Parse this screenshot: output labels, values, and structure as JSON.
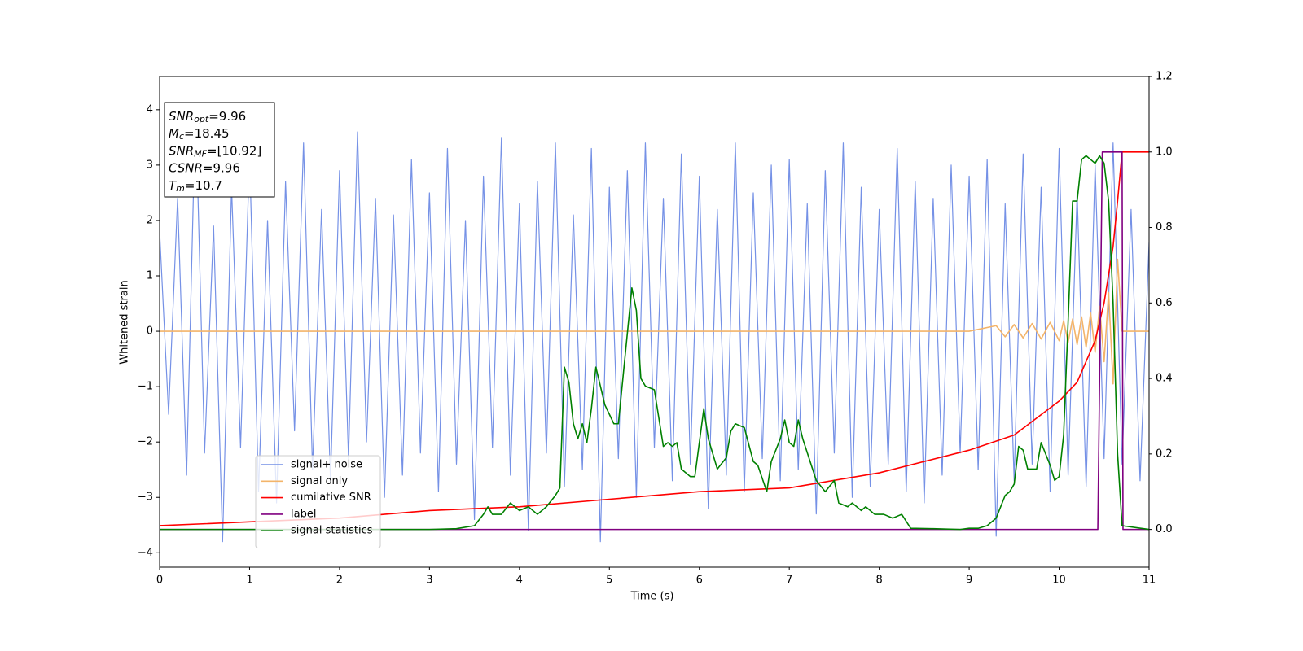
{
  "chart_data": {
    "type": "line",
    "xlabel": "Time (s)",
    "ylabel": "Whitened strain",
    "xlim": [
      0,
      11
    ],
    "ylim": [
      -4.26,
      4.6
    ],
    "y2lim": [
      -0.1,
      1.2
    ],
    "xticks": [
      0,
      1,
      2,
      3,
      4,
      5,
      6,
      7,
      8,
      9,
      10,
      11
    ],
    "yticks": [
      {
        "value": -4,
        "label": "−4"
      },
      {
        "value": -3,
        "label": "−3"
      },
      {
        "value": -2,
        "label": "−2"
      },
      {
        "value": -1,
        "label": "−1"
      },
      0,
      1,
      2,
      3,
      4
    ],
    "y2ticks": [
      {
        "value": 0,
        "label": "0.0"
      },
      {
        "value": 0.2,
        "label": "0.2"
      },
      {
        "value": 0.4,
        "label": "0.4"
      },
      {
        "value": 0.6,
        "label": "0.6"
      },
      {
        "value": 0.8,
        "label": "0.8"
      },
      {
        "value": 1,
        "label": "1.0"
      },
      {
        "value": 1.2,
        "label": "1.2"
      }
    ],
    "legend": "lower left",
    "annotations": [
      {
        "name": "SNR",
        "sub": "opt",
        "text": "=9.96"
      },
      {
        "name": "M",
        "sub": "c",
        "text": "=18.45"
      },
      {
        "name": "SNR",
        "sub": "MF",
        "text": "=[10.92]"
      },
      {
        "name": "CSNR",
        "text": "=9.96"
      },
      {
        "name": "T",
        "sub": "m",
        "text": "=10.7"
      }
    ],
    "series": [
      {
        "name": "signal+ noise",
        "color": "#7591e6",
        "x": [
          0,
          0.1,
          0.2,
          0.3,
          0.4,
          0.5,
          0.6,
          0.7,
          0.8,
          0.9,
          1,
          1.1,
          1.2,
          1.3,
          1.4,
          1.5,
          1.6,
          1.7,
          1.8,
          1.9,
          2,
          2.1,
          2.2,
          2.3,
          2.4,
          2.5,
          2.6,
          2.7,
          2.8,
          2.9,
          3,
          3.1,
          3.2,
          3.3,
          3.4,
          3.5,
          3.6,
          3.7,
          3.8,
          3.9,
          4,
          4.1,
          4.2,
          4.3,
          4.4,
          4.5,
          4.6,
          4.7,
          4.8,
          4.9,
          5,
          5.1,
          5.2,
          5.3,
          5.4,
          5.5,
          5.6,
          5.7,
          5.8,
          5.9,
          6,
          6.1,
          6.2,
          6.3,
          6.4,
          6.5,
          6.6,
          6.7,
          6.8,
          6.9,
          7,
          7.1,
          7.2,
          7.3,
          7.4,
          7.5,
          7.6,
          7.7,
          7.8,
          7.9,
          8,
          8.1,
          8.2,
          8.3,
          8.4,
          8.5,
          8.6,
          8.7,
          8.8,
          8.9,
          9,
          9.1,
          9.2,
          9.3,
          9.4,
          9.5,
          9.6,
          9.7,
          9.8,
          9.9,
          10,
          10.1,
          10.2,
          10.3,
          10.4,
          10.5,
          10.6,
          10.7,
          10.8,
          10.9,
          11
        ],
        "values": [
          1.8,
          -1.5,
          2.4,
          -2.6,
          4.1,
          -2.2,
          1.9,
          -3.8,
          2.6,
          -2.1,
          3.2,
          -2.9,
          2.0,
          -3.1,
          2.7,
          -1.8,
          3.4,
          -2.5,
          2.2,
          -2.7,
          2.9,
          -2.3,
          3.6,
          -2.0,
          2.4,
          -3.0,
          2.1,
          -2.6,
          3.1,
          -2.2,
          2.5,
          -2.9,
          3.3,
          -2.4,
          2.0,
          -3.4,
          2.8,
          -2.1,
          3.5,
          -2.6,
          2.3,
          -3.6,
          2.7,
          -2.2,
          3.4,
          -2.8,
          2.1,
          -2.5,
          3.3,
          -3.8,
          2.6,
          -2.3,
          2.9,
          -3.0,
          3.4,
          -2.1,
          2.4,
          -2.7,
          3.2,
          -2.4,
          2.8,
          -3.2,
          2.2,
          -2.6,
          3.4,
          -2.9,
          2.5,
          -2.3,
          3.0,
          -2.7,
          3.1,
          -2.5,
          2.3,
          -3.3,
          2.9,
          -2.2,
          3.4,
          -3.0,
          2.6,
          -2.8,
          2.2,
          -2.4,
          3.3,
          -2.9,
          2.7,
          -3.1,
          2.4,
          -2.6,
          3.0,
          -2.2,
          2.8,
          -2.5,
          3.1,
          -3.7,
          2.3,
          -2.7,
          3.2,
          -2.4,
          2.6,
          -2.9,
          3.3,
          -2.6,
          2.5,
          -2.8,
          3.0,
          -2.3,
          3.4,
          -2.4,
          2.2,
          -2.7,
          1.6
        ]
      },
      {
        "name": "signal only",
        "color": "#f3b46a",
        "x": [
          0,
          2,
          4,
          6,
          8,
          9,
          9.3,
          9.4,
          9.5,
          9.6,
          9.7,
          9.8,
          9.9,
          10,
          10.05,
          10.1,
          10.15,
          10.2,
          10.25,
          10.3,
          10.35,
          10.4,
          10.45,
          10.5,
          10.55,
          10.6,
          10.65,
          10.7,
          10.8,
          11
        ],
        "values": [
          0,
          0,
          0,
          0,
          0,
          0,
          0.1,
          -0.1,
          0.12,
          -0.12,
          0.14,
          -0.14,
          0.16,
          -0.17,
          0.19,
          -0.2,
          0.22,
          -0.24,
          0.26,
          -0.29,
          0.33,
          -0.38,
          0.45,
          -0.55,
          0.7,
          -0.95,
          1.3,
          0,
          0,
          0
        ]
      },
      {
        "name": "cumilative SNR",
        "color": "#ff0000",
        "axis": "y2",
        "x": [
          0,
          1,
          2,
          3,
          4,
          5,
          6,
          7,
          8,
          9,
          9.5,
          10,
          10.2,
          10.4,
          10.5,
          10.6,
          10.65,
          10.7,
          11
        ],
        "values": [
          0.01,
          0.02,
          0.03,
          0.05,
          0.06,
          0.08,
          0.1,
          0.11,
          0.15,
          0.21,
          0.25,
          0.34,
          0.39,
          0.5,
          0.6,
          0.75,
          0.87,
          1.0,
          1.0
        ]
      },
      {
        "name": "label",
        "color": "#800080",
        "axis": "y2",
        "x": [
          0,
          10.43,
          10.48,
          10.7,
          10.71,
          11
        ],
        "values": [
          0,
          0,
          1,
          1,
          0,
          0
        ]
      },
      {
        "name": "signal statistics",
        "color": "#008000",
        "axis": "y2",
        "x": [
          0,
          1,
          2,
          3,
          3.3,
          3.5,
          3.6,
          3.65,
          3.7,
          3.8,
          3.9,
          4.0,
          4.1,
          4.2,
          4.3,
          4.4,
          4.45,
          4.5,
          4.55,
          4.6,
          4.65,
          4.7,
          4.75,
          4.8,
          4.85,
          4.95,
          5.05,
          5.1,
          5.2,
          5.25,
          5.3,
          5.35,
          5.4,
          5.5,
          5.6,
          5.65,
          5.7,
          5.75,
          5.8,
          5.9,
          5.95,
          6.05,
          6.1,
          6.2,
          6.3,
          6.35,
          6.4,
          6.5,
          6.6,
          6.65,
          6.75,
          6.8,
          6.9,
          6.95,
          7.0,
          7.05,
          7.1,
          7.15,
          7.3,
          7.4,
          7.5,
          7.55,
          7.65,
          7.7,
          7.8,
          7.85,
          7.95,
          8.05,
          8.15,
          8.25,
          8.35,
          8.6,
          8.9,
          9.0,
          9.1,
          9.2,
          9.3,
          9.4,
          9.45,
          9.5,
          9.55,
          9.6,
          9.65,
          9.75,
          9.8,
          9.9,
          9.95,
          10.0,
          10.05,
          10.1,
          10.15,
          10.2,
          10.25,
          10.3,
          10.35,
          10.4,
          10.45,
          10.5,
          10.55,
          10.6,
          10.65,
          10.7,
          11
        ],
        "values": [
          0,
          0,
          0,
          0,
          0.002,
          0.01,
          0.04,
          0.06,
          0.04,
          0.04,
          0.07,
          0.05,
          0.06,
          0.04,
          0.06,
          0.09,
          0.11,
          0.43,
          0.39,
          0.28,
          0.24,
          0.28,
          0.23,
          0.32,
          0.43,
          0.33,
          0.28,
          0.28,
          0.52,
          0.64,
          0.58,
          0.4,
          0.38,
          0.37,
          0.22,
          0.23,
          0.22,
          0.23,
          0.16,
          0.14,
          0.14,
          0.32,
          0.24,
          0.16,
          0.19,
          0.26,
          0.28,
          0.27,
          0.18,
          0.17,
          0.1,
          0.18,
          0.24,
          0.29,
          0.23,
          0.22,
          0.29,
          0.24,
          0.13,
          0.1,
          0.13,
          0.07,
          0.06,
          0.07,
          0.05,
          0.06,
          0.04,
          0.04,
          0.03,
          0.04,
          0.003,
          0.002,
          0,
          0.003,
          0.003,
          0.01,
          0.03,
          0.09,
          0.1,
          0.12,
          0.22,
          0.21,
          0.16,
          0.16,
          0.23,
          0.17,
          0.13,
          0.14,
          0.25,
          0.55,
          0.87,
          0.87,
          0.98,
          0.99,
          0.98,
          0.97,
          0.99,
          0.97,
          0.87,
          0.6,
          0.2,
          0.01,
          0
        ]
      }
    ]
  }
}
